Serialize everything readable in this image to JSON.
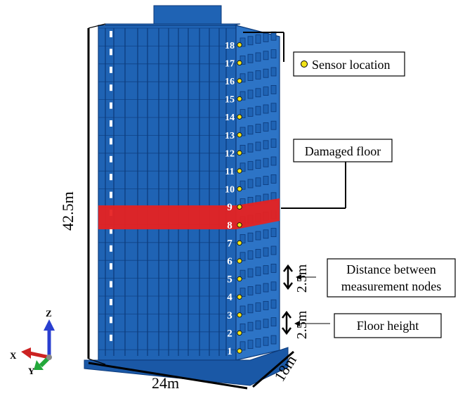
{
  "floors": [
    "1",
    "2",
    "3",
    "4",
    "5",
    "6",
    "7",
    "8",
    "9",
    "10",
    "11",
    "12",
    "13",
    "14",
    "15",
    "16",
    "17",
    "18"
  ],
  "damaged_floor_number": "8",
  "legend": {
    "sensor_location": "Sensor location",
    "damaged_floor": "Damaged floor",
    "distance_between": [
      "Distance between",
      "measurement nodes"
    ],
    "floor_height": "Floor height"
  },
  "dimensions": {
    "height": "42.5m",
    "width": "24m",
    "depth": "18m",
    "node_spacing": "2.5m",
    "floor_spacing": "2.5m"
  },
  "axes": {
    "x": "X",
    "y": "Y",
    "z": "Z"
  },
  "colors": {
    "building_front": "#1f63b4",
    "building_side": "#2d74c6",
    "building_dark": "#0c3a7a",
    "damaged": "#e62222",
    "sensor": "#f2e318",
    "axis_x": "#cc2222",
    "axis_y": "#22a83a",
    "axis_z": "#2a3fd0"
  }
}
